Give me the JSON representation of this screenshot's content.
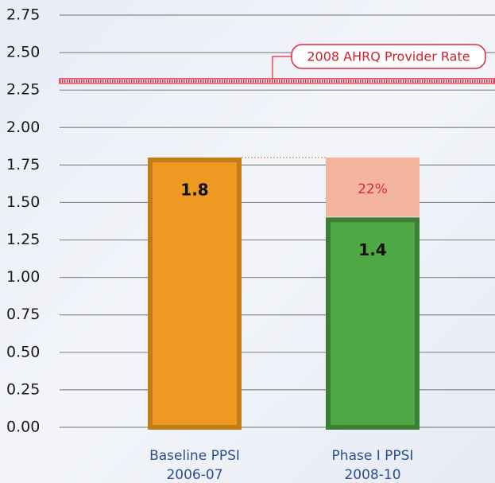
{
  "chart_data": {
    "type": "bar",
    "categories": [
      "Baseline PPSI",
      "Phase I PPSI"
    ],
    "periods": [
      "2006-07",
      "2008-10"
    ],
    "series": [
      {
        "values": [
          1.8,
          1.4
        ],
        "colors": [
          "#ee9a22",
          "#50a845"
        ],
        "border_colors": [
          "#c27d16",
          "#3a7f34"
        ]
      }
    ],
    "reduction": {
      "value": 22,
      "value_label": "22%",
      "color": "#f4b5a0"
    },
    "reference": {
      "label": "2008 AHRQ Provider Rate",
      "value": 2.31,
      "color": "#e0283a"
    },
    "ylim": [
      0,
      2.75
    ],
    "yticks": [
      {
        "value": 0,
        "label": "0.00"
      },
      {
        "value": 0.25,
        "label": "0.25"
      },
      {
        "value": 0.5,
        "label": "0.50"
      },
      {
        "value": 0.75,
        "label": "0.75"
      },
      {
        "value": 1,
        "label": "1.00"
      },
      {
        "value": 1.25,
        "label": "1.25"
      },
      {
        "value": 1.5,
        "label": "1.50"
      },
      {
        "value": 1.75,
        "label": "1.75"
      },
      {
        "value": 2,
        "label": "2.00"
      },
      {
        "value": 2.25,
        "label": "2.25"
      },
      {
        "value": 2.5,
        "label": "2.50"
      },
      {
        "value": 2.75,
        "label": "2.75"
      }
    ],
    "grid": true
  }
}
